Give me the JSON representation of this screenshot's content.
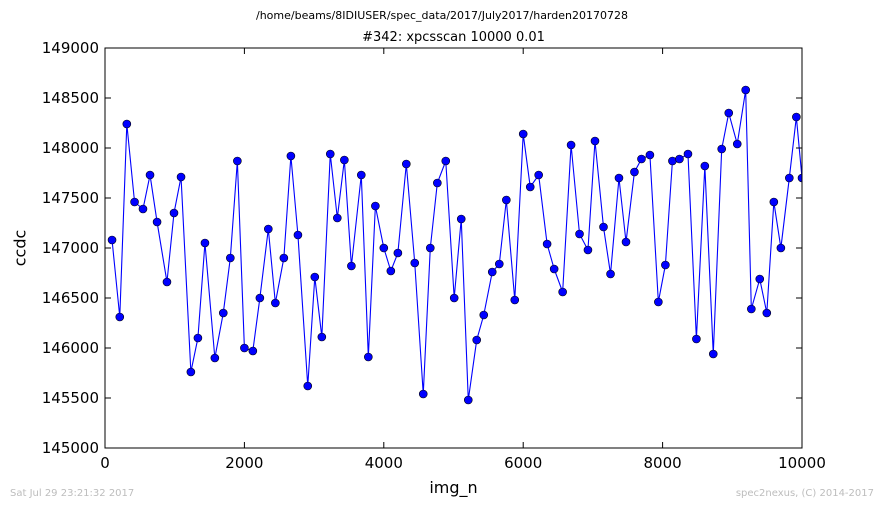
{
  "page": {
    "suptitle": "/home/beams/8IDIUSER/spec_data/2017/July2017/harden20170728",
    "footer_left": "Sat Jul 29 23:21:32 2017",
    "footer_right": "spec2nexus, (C) 2014-2017"
  },
  "chart_data": {
    "type": "line",
    "title": "#342: xpcsscan 10000 0.01",
    "xlabel": "img_n",
    "ylabel": "ccdc",
    "xlim": [
      0,
      10000
    ],
    "ylim": [
      145000,
      149000
    ],
    "xticks": [
      0,
      2000,
      4000,
      6000,
      8000,
      10000
    ],
    "yticks": [
      145000,
      145500,
      146000,
      146500,
      147000,
      147500,
      148000,
      148500,
      149000
    ],
    "grid": false,
    "line_color": "#0000ff",
    "marker_color": "#0000ff",
    "series": [
      {
        "marker": "circle",
        "x": [
          101,
          212,
          313,
          424,
          545,
          646,
          747,
          889,
          990,
          1091,
          1232,
          1333,
          1434,
          1576,
          1697,
          1798,
          1899,
          2000,
          2121,
          2222,
          2343,
          2444,
          2566,
          2667,
          2768,
          2909,
          3010,
          3111,
          3232,
          3333,
          3434,
          3535,
          3677,
          3778,
          3879,
          4000,
          4101,
          4202,
          4323,
          4444,
          4566,
          4667,
          4768,
          4889,
          5010,
          5111,
          5212,
          5333,
          5434,
          5556,
          5657,
          5758,
          5879,
          6000,
          6101,
          6222,
          6343,
          6444,
          6566,
          6687,
          6808,
          6929,
          7030,
          7152,
          7253,
          7374,
          7475,
          7596,
          7697,
          7818,
          7939,
          8040,
          8141,
          8242,
          8364,
          8485,
          8606,
          8727,
          8848,
          8949,
          9071,
          9192,
          9273,
          9394,
          9495,
          9596,
          9697,
          9818,
          9919,
          10000
        ],
        "y": [
          147080,
          146310,
          148240,
          147460,
          147390,
          147730,
          147260,
          146660,
          147350,
          147710,
          145760,
          146100,
          147050,
          145900,
          146350,
          146900,
          147870,
          146000,
          145970,
          146500,
          147190,
          146450,
          146900,
          147920,
          147130,
          145620,
          146710,
          146110,
          147940,
          147300,
          147880,
          146820,
          147730,
          145910,
          147420,
          147000,
          146770,
          146950,
          147840,
          146850,
          145540,
          147000,
          147650,
          147870,
          146500,
          147290,
          145480,
          146080,
          146330,
          146760,
          146840,
          147480,
          146480,
          148140,
          147610,
          147730,
          147040,
          146790,
          146560,
          148030,
          147140,
          146980,
          148070,
          147210,
          146740,
          147700,
          147060,
          147760,
          147890,
          147930,
          146460,
          146830,
          147870,
          147890,
          147940,
          146090,
          147820,
          145940,
          147990,
          148350,
          148040,
          148580,
          146390,
          146690,
          146350,
          147460,
          147000,
          147700,
          148310,
          147700
        ]
      }
    ]
  }
}
